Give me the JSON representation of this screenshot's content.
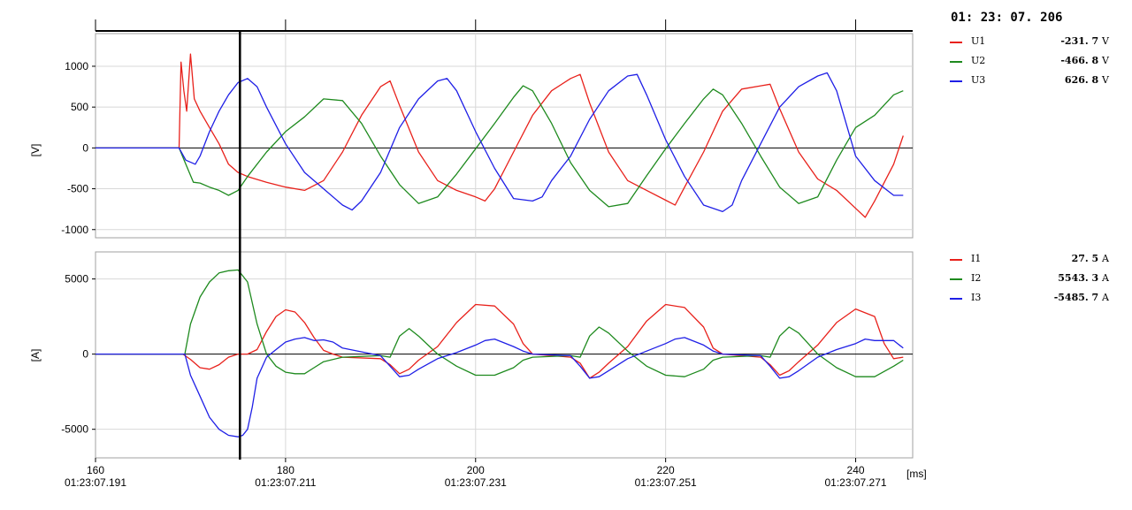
{
  "timestamp": "01: 23: 07. 206",
  "legend_voltage": [
    {
      "name": "U1",
      "value": "-231. 7",
      "unit": "V",
      "color": "#e8211b"
    },
    {
      "name": "U2",
      "value": "-466. 8",
      "unit": "V",
      "color": "#1e8a1e"
    },
    {
      "name": "U3",
      "value": "626. 8",
      "unit": "V",
      "color": "#1f1fe6"
    }
  ],
  "legend_current": [
    {
      "name": "I1",
      "value": "27. 5",
      "unit": "A",
      "color": "#e8211b"
    },
    {
      "name": "I2",
      "value": "5543. 3",
      "unit": "A",
      "color": "#1e8a1e"
    },
    {
      "name": "I3",
      "value": "-5485. 7",
      "unit": "A",
      "color": "#1f1fe6"
    }
  ],
  "chart_data": [
    {
      "type": "line",
      "title": "",
      "xlabel": "[ms]",
      "ylabel": "[V]",
      "xlim": [
        160,
        246
      ],
      "ylim": [
        -1100,
        1400
      ],
      "yticks": [
        1000,
        500,
        0,
        -500,
        -1000
      ],
      "grid": true,
      "cursor_x": 175.2,
      "series": [
        {
          "name": "U1",
          "color": "#e8211b",
          "x": [
            160,
            168.8,
            169.0,
            169.3,
            169.6,
            170.0,
            170.4,
            171,
            172,
            173,
            174,
            175,
            176,
            178,
            180,
            182,
            184,
            186,
            188,
            190,
            191,
            192,
            194,
            196,
            198,
            200,
            201,
            202,
            204,
            206,
            208,
            210,
            211,
            212,
            214,
            216,
            218,
            220,
            221,
            222,
            224,
            226,
            228,
            230,
            231,
            232,
            234,
            236,
            238,
            240,
            241,
            242,
            244,
            245
          ],
          "y": [
            0,
            0,
            1050,
            700,
            450,
            1150,
            600,
            450,
            250,
            50,
            -200,
            -300,
            -350,
            -420,
            -480,
            -520,
            -400,
            -50,
            400,
            750,
            820,
            520,
            -50,
            -400,
            -520,
            -600,
            -650,
            -500,
            -50,
            400,
            700,
            850,
            900,
            550,
            -50,
            -400,
            -520,
            -640,
            -700,
            -480,
            -50,
            450,
            720,
            760,
            780,
            480,
            -50,
            -380,
            -520,
            -740,
            -850,
            -650,
            -200,
            150
          ]
        },
        {
          "name": "U2",
          "color": "#1e8a1e",
          "x": [
            160,
            168.8,
            169.5,
            170.3,
            171,
            172,
            173,
            174,
            175,
            176,
            178,
            180,
            182,
            184,
            186,
            188,
            190,
            192,
            194,
            196,
            198,
            200,
            202,
            204,
            205,
            206,
            208,
            210,
            212,
            214,
            216,
            218,
            220,
            222,
            224,
            225,
            226,
            228,
            230,
            232,
            234,
            236,
            238,
            240,
            242,
            244,
            245
          ],
          "y": [
            0,
            0,
            -200,
            -420,
            -430,
            -480,
            -520,
            -580,
            -520,
            -350,
            -50,
            200,
            380,
            600,
            580,
            300,
            -100,
            -450,
            -680,
            -600,
            -320,
            -10,
            300,
            620,
            760,
            700,
            300,
            -180,
            -520,
            -720,
            -680,
            -340,
            -10,
            300,
            600,
            720,
            650,
            300,
            -100,
            -480,
            -680,
            -600,
            -150,
            250,
            400,
            650,
            700
          ]
        },
        {
          "name": "U3",
          "color": "#1f1fe6",
          "x": [
            160,
            168.8,
            169.5,
            170.5,
            171,
            172,
            173,
            174,
            175,
            176,
            177,
            178,
            180,
            182,
            184,
            186,
            187,
            188,
            190,
            192,
            194,
            196,
            197,
            198,
            200,
            202,
            204,
            206,
            207,
            208,
            210,
            212,
            214,
            216,
            217,
            218,
            220,
            222,
            224,
            226,
            227,
            228,
            230,
            232,
            234,
            236,
            237,
            238,
            240,
            242,
            244,
            245
          ],
          "y": [
            0,
            0,
            -150,
            -200,
            -100,
            200,
            450,
            650,
            800,
            850,
            750,
            500,
            50,
            -300,
            -500,
            -700,
            -760,
            -650,
            -300,
            250,
            600,
            820,
            850,
            700,
            200,
            -250,
            -620,
            -650,
            -600,
            -400,
            -100,
            350,
            700,
            880,
            900,
            650,
            100,
            -350,
            -700,
            -780,
            -700,
            -400,
            50,
            500,
            750,
            880,
            920,
            700,
            -100,
            -400,
            -580,
            -580
          ]
        }
      ]
    },
    {
      "type": "line",
      "title": "",
      "xlabel": "[ms]",
      "ylabel": "[A]",
      "xlim": [
        160,
        246
      ],
      "ylim": [
        -6900,
        6800
      ],
      "yticks": [
        5000,
        0,
        -5000
      ],
      "x_tick_labels": [
        {
          "ms": "160",
          "time": "01:23:07.191"
        },
        {
          "ms": "180",
          "time": "01:23:07.211"
        },
        {
          "ms": "200",
          "time": "01:23:07.231"
        },
        {
          "ms": "220",
          "time": "01:23:07.251"
        },
        {
          "ms": "240",
          "time": "01:23:07.271"
        }
      ],
      "grid": true,
      "cursor_x": 175.2,
      "series": [
        {
          "name": "I1",
          "color": "#e8211b",
          "x": [
            160,
            169.2,
            170,
            171,
            172,
            173,
            174,
            175,
            176,
            177,
            178,
            179,
            180,
            181,
            182,
            183,
            184,
            185,
            186,
            190,
            191,
            192,
            193,
            194,
            196,
            198,
            200,
            202,
            204,
            205,
            206,
            210,
            211,
            212,
            213,
            214,
            216,
            218,
            220,
            222,
            224,
            225,
            226,
            230,
            231,
            232,
            233,
            234,
            236,
            238,
            240,
            242,
            243,
            244,
            245
          ],
          "y": [
            0,
            0,
            -350,
            -900,
            -1000,
            -700,
            -200,
            0,
            0,
            300,
            1500,
            2500,
            2950,
            2800,
            2100,
            1100,
            250,
            0,
            -200,
            -300,
            -700,
            -1300,
            -1000,
            -400,
            500,
            2100,
            3300,
            3200,
            2000,
            700,
            0,
            -200,
            -600,
            -1600,
            -1200,
            -600,
            500,
            2200,
            3300,
            3100,
            1800,
            400,
            0,
            -200,
            -700,
            -1400,
            -1100,
            -500,
            600,
            2100,
            3000,
            2500,
            700,
            -300,
            -200
          ]
        },
        {
          "name": "I2",
          "color": "#1e8a1e",
          "x": [
            160,
            169.4,
            170,
            171,
            172,
            173,
            174,
            175,
            176,
            177,
            178,
            179,
            180,
            181,
            182,
            183,
            184,
            186,
            190,
            191,
            192,
            193,
            194,
            196,
            198,
            200,
            202,
            204,
            205,
            206,
            210,
            211,
            212,
            213,
            214,
            216,
            218,
            220,
            222,
            224,
            225,
            226,
            230,
            231,
            232,
            233,
            234,
            236,
            238,
            240,
            242,
            244,
            245
          ],
          "y": [
            0,
            0,
            2000,
            3800,
            4800,
            5400,
            5550,
            5600,
            4800,
            2000,
            0,
            -800,
            -1200,
            -1300,
            -1300,
            -900,
            -500,
            -200,
            -100,
            -200,
            1200,
            1700,
            1200,
            0,
            -800,
            -1400,
            -1400,
            -900,
            -400,
            -200,
            -100,
            -200,
            1200,
            1800,
            1400,
            200,
            -800,
            -1400,
            -1500,
            -1000,
            -400,
            -200,
            -100,
            -200,
            1200,
            1800,
            1400,
            0,
            -900,
            -1500,
            -1500,
            -800,
            -400
          ]
        },
        {
          "name": "I3",
          "color": "#1f1fe6",
          "x": [
            160,
            169.4,
            170,
            171,
            172,
            173,
            174,
            175,
            175.5,
            176,
            176.5,
            177,
            178,
            179,
            180,
            181,
            182,
            183,
            184,
            185,
            186,
            190,
            191,
            192,
            193,
            194,
            196,
            198,
            200,
            201,
            202,
            204,
            205,
            206,
            210,
            211,
            212,
            213,
            214,
            216,
            218,
            220,
            221,
            222,
            224,
            225,
            226,
            230,
            231,
            232,
            233,
            234,
            236,
            238,
            240,
            241,
            242,
            244,
            245
          ],
          "y": [
            0,
            0,
            -1400,
            -2800,
            -4200,
            -5000,
            -5400,
            -5500,
            -5400,
            -5000,
            -3500,
            -1600,
            -200,
            300,
            800,
            1000,
            1100,
            900,
            950,
            800,
            400,
            -100,
            -800,
            -1500,
            -1400,
            -1000,
            -300,
            100,
            600,
            900,
            1000,
            500,
            200,
            0,
            -100,
            -800,
            -1600,
            -1500,
            -1100,
            -300,
            200,
            700,
            1000,
            1100,
            600,
            200,
            0,
            -100,
            -800,
            -1600,
            -1500,
            -1100,
            -200,
            300,
            700,
            1000,
            900,
            900,
            400
          ]
        }
      ]
    }
  ]
}
